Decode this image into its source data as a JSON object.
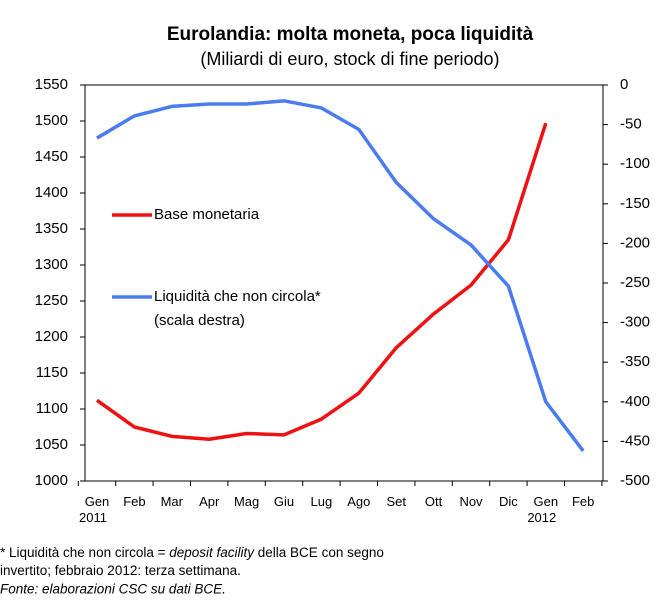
{
  "chart_data": {
    "type": "line",
    "title": "Eurolandia: molta moneta, poca liquidità",
    "subtitle": "(Miliardi di euro, stock di fine periodo)",
    "categories": [
      "Gen 2011",
      "Feb",
      "Mar",
      "Apr",
      "Mag",
      "Giu",
      "Lug",
      "Ago",
      "Set",
      "Ott",
      "Nov",
      "Dic",
      "Gen 2012",
      "Feb"
    ],
    "series": [
      {
        "name": "Base monetaria",
        "color": "#ee1111",
        "values": [
          1112,
          1075,
          1062,
          1058,
          1066,
          1064,
          1086,
          1122,
          1185,
          1232,
          1272,
          1335,
          1497,
          null
        ]
      },
      {
        "name": "Liquidità che non circola*",
        "axis_note": "(scala destra)",
        "axis": "y2",
        "color": "#4a7cf0",
        "values": [
          -67,
          -39,
          -27,
          -24,
          -24,
          -20,
          -29,
          -56,
          -123,
          -169,
          -202,
          -254,
          -400,
          -462
        ]
      }
    ],
    "ylim": [
      1000,
      1550
    ],
    "yticks": [
      1000,
      1050,
      1100,
      1150,
      1200,
      1250,
      1300,
      1350,
      1400,
      1450,
      1500,
      1550
    ],
    "y2lim": [
      -500,
      0
    ],
    "y2ticks": [
      -500,
      -450,
      -400,
      -350,
      -300,
      -250,
      -200,
      -150,
      -100,
      -50,
      0
    ],
    "grid": false,
    "footnote_lines": [
      [
        {
          "text": "* Liquidità che non circola = "
        },
        {
          "text": "deposit facility",
          "italic": true
        },
        {
          "text": " della BCE con segno"
        }
      ],
      [
        {
          "text": "invertito; febbraio 2012: terza settimana."
        }
      ]
    ],
    "source": "Fonte: elaborazioni CSC su dati BCE."
  }
}
